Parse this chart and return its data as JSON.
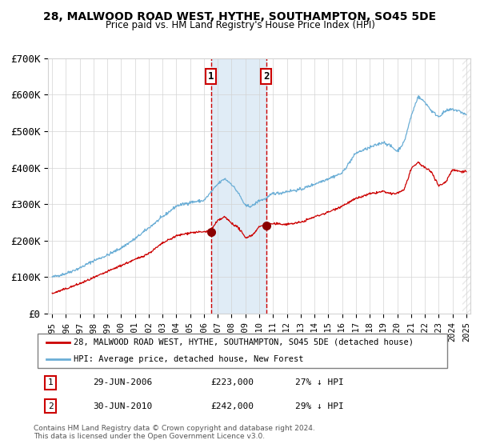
{
  "title1": "28, MALWOOD ROAD WEST, HYTHE, SOUTHAMPTON, SO45 5DE",
  "title2": "Price paid vs. HM Land Registry's House Price Index (HPI)",
  "legend_line1": "28, MALWOOD ROAD WEST, HYTHE, SOUTHAMPTON, SO45 5DE (detached house)",
  "legend_line2": "HPI: Average price, detached house, New Forest",
  "annotation1_label": "1",
  "annotation1_date": "29-JUN-2006",
  "annotation1_price": "£223,000",
  "annotation1_hpi": "27% ↓ HPI",
  "annotation2_label": "2",
  "annotation2_date": "30-JUN-2010",
  "annotation2_price": "£242,000",
  "annotation2_hpi": "29% ↓ HPI",
  "footer": "Contains HM Land Registry data © Crown copyright and database right 2024.\nThis data is licensed under the Open Government Licence v3.0.",
  "hpi_color": "#6baed6",
  "price_color": "#cc0000",
  "dot_color": "#8b0000",
  "vline_color": "#cc0000",
  "shade_color": "#cce0f0",
  "ylim": [
    0,
    700000
  ],
  "ytick_values": [
    0,
    100000,
    200000,
    300000,
    400000,
    500000,
    600000,
    700000
  ],
  "ytick_labels": [
    "£0",
    "£100K",
    "£200K",
    "£300K",
    "£400K",
    "£500K",
    "£600K",
    "£700K"
  ],
  "year_start": 1995,
  "year_end": 2025,
  "sale1_year": 2006.496,
  "sale1_price": 223000,
  "sale2_year": 2010.496,
  "sale2_price": 242000
}
